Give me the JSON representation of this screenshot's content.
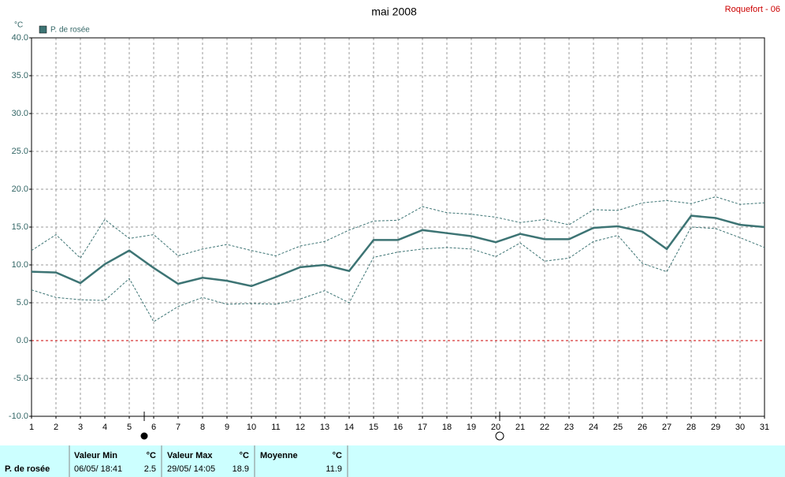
{
  "chart_data": {
    "type": "line",
    "title": "mai 2008",
    "station": "Roquefort - 06",
    "y_unit": "°C",
    "x": [
      1,
      2,
      3,
      4,
      5,
      6,
      7,
      8,
      9,
      10,
      11,
      12,
      13,
      14,
      15,
      16,
      17,
      18,
      19,
      20,
      21,
      22,
      23,
      24,
      25,
      26,
      27,
      28,
      29,
      30,
      31
    ],
    "series": [
      {
        "name": "P. de rosée",
        "color": "#3d7474",
        "values": [
          9.1,
          9.0,
          7.6,
          10.1,
          11.9,
          9.6,
          7.5,
          8.3,
          7.9,
          7.2,
          8.4,
          9.7,
          10.0,
          9.2,
          13.3,
          13.3,
          14.6,
          14.2,
          13.8,
          13.0,
          14.1,
          13.4,
          13.4,
          14.9,
          15.1,
          14.4,
          12.1,
          16.5,
          16.2,
          15.3,
          15.0
        ],
        "high": [
          11.9,
          14.0,
          10.9,
          16.0,
          13.5,
          14.0,
          11.2,
          12.1,
          12.7,
          11.9,
          11.2,
          12.5,
          13.1,
          14.6,
          15.8,
          15.9,
          17.7,
          16.9,
          16.7,
          16.3,
          15.6,
          16.0,
          15.3,
          17.3,
          17.2,
          18.2,
          18.5,
          18.1,
          19.0,
          18.0,
          18.2
        ],
        "low": [
          6.7,
          5.7,
          5.4,
          5.3,
          8.2,
          2.5,
          4.5,
          5.7,
          4.8,
          4.9,
          4.8,
          5.5,
          6.6,
          5.0,
          11.0,
          11.7,
          12.1,
          12.3,
          12.1,
          11.1,
          12.9,
          10.5,
          10.9,
          13.1,
          13.9,
          10.2,
          9.1,
          15.0,
          14.8,
          13.6,
          12.3
        ]
      }
    ],
    "xlim": [
      1,
      31
    ],
    "xticks": [
      1,
      2,
      3,
      4,
      5,
      6,
      7,
      8,
      9,
      10,
      11,
      12,
      13,
      14,
      15,
      16,
      17,
      18,
      19,
      20,
      21,
      22,
      23,
      24,
      25,
      26,
      27,
      28,
      29,
      30,
      31
    ],
    "ylim": [
      -10,
      40
    ],
    "yticks": [
      {
        "value": -10,
        "label": "-10.0"
      },
      {
        "value": -5,
        "label": "-5.0"
      },
      {
        "value": 0,
        "label": "0.0"
      },
      {
        "value": 5,
        "label": "5.0"
      },
      {
        "value": 10,
        "label": "10.0"
      },
      {
        "value": 15,
        "label": "15.0"
      },
      {
        "value": 20,
        "label": "20.0"
      },
      {
        "value": 25,
        "label": "25.0"
      },
      {
        "value": 30,
        "label": "30.0"
      },
      {
        "value": 35,
        "label": "35.0"
      },
      {
        "value": 40,
        "label": "40.0"
      }
    ],
    "reference_line": 0,
    "reference_color": "#cc0000",
    "grid": true
  },
  "summary": {
    "name": "P. de rosée",
    "min": {
      "label": "Valeur Min",
      "unit": "°C",
      "date": "06/05/ 18:41",
      "value": "2.5"
    },
    "max": {
      "label": "Valeur Max",
      "unit": "°C",
      "date": "29/05/ 14:05",
      "value": "18.9"
    },
    "mean": {
      "label": "Moyenne",
      "unit": "°C",
      "value": "11.9"
    }
  }
}
